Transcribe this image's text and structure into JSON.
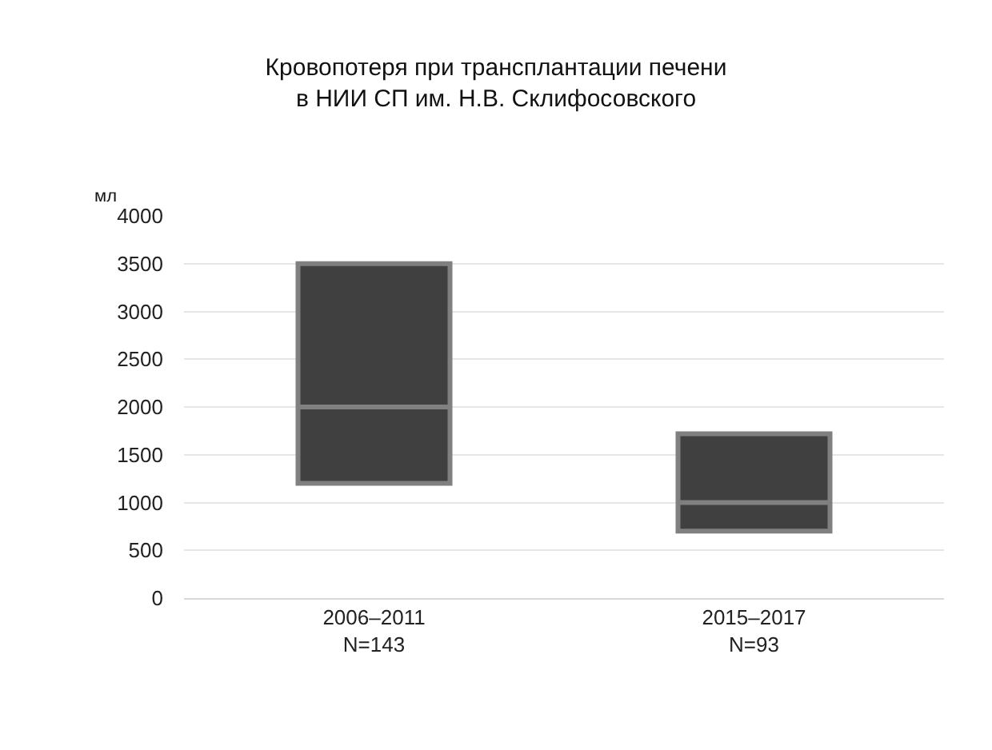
{
  "chart_data": {
    "type": "box",
    "title": "Кровопотеря при трансплантации печени\nв НИИ СП им. Н.В. Склифосовского",
    "ylabel": "мл",
    "categories": [
      "2006–2011\nN=143",
      "2015–2017\nN=93"
    ],
    "series": [
      {
        "color": "#404040",
        "boxes": [
          {
            "q1": 1200,
            "median": 2000,
            "q3": 3500
          },
          {
            "q1": 700,
            "median": 1000,
            "q3": 1720
          }
        ]
      }
    ],
    "ylim": [
      0,
      4000
    ],
    "yticks": [
      0,
      500,
      1000,
      1500,
      2000,
      2500,
      3000,
      3500,
      4000
    ],
    "grid": "y"
  }
}
